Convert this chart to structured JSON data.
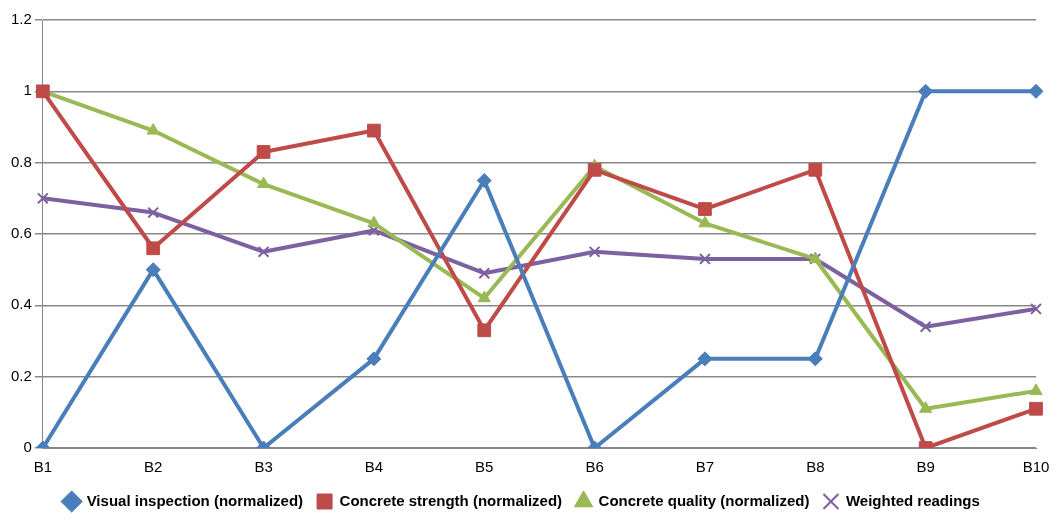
{
  "chart_data": {
    "type": "line",
    "categories": [
      "B1",
      "B2",
      "B3",
      "B4",
      "B5",
      "B6",
      "B7",
      "B8",
      "B9",
      "B10"
    ],
    "series": [
      {
        "name": "Visual inspection (normalized)",
        "color": "#4a7ebb",
        "marker": "diamond",
        "values": [
          0,
          0.5,
          0,
          0.25,
          0.75,
          0,
          0.25,
          0.25,
          1,
          1
        ]
      },
      {
        "name": "Concrete strength (normalized)",
        "color": "#be4b48",
        "marker": "square",
        "values": [
          1,
          0.56,
          0.83,
          0.89,
          0.33,
          0.78,
          0.67,
          0.78,
          0,
          0.11
        ]
      },
      {
        "name": "Concrete quality (normalized)",
        "color": "#98b954",
        "marker": "triangle",
        "values": [
          1,
          0.89,
          0.74,
          0.63,
          0.42,
          0.79,
          0.63,
          0.53,
          0.11,
          0.16
        ]
      },
      {
        "name": "Weighted readings",
        "color": "#7d60a0",
        "marker": "cross",
        "values": [
          0.7,
          0.66,
          0.55,
          0.61,
          0.49,
          0.55,
          0.53,
          0.53,
          0.34,
          0.39
        ]
      }
    ],
    "ylim": [
      0,
      1.2
    ],
    "yticks": [
      0,
      0.2,
      0.4,
      0.6,
      0.8,
      1,
      1.2
    ],
    "grid": "y",
    "legend": "bottom"
  }
}
